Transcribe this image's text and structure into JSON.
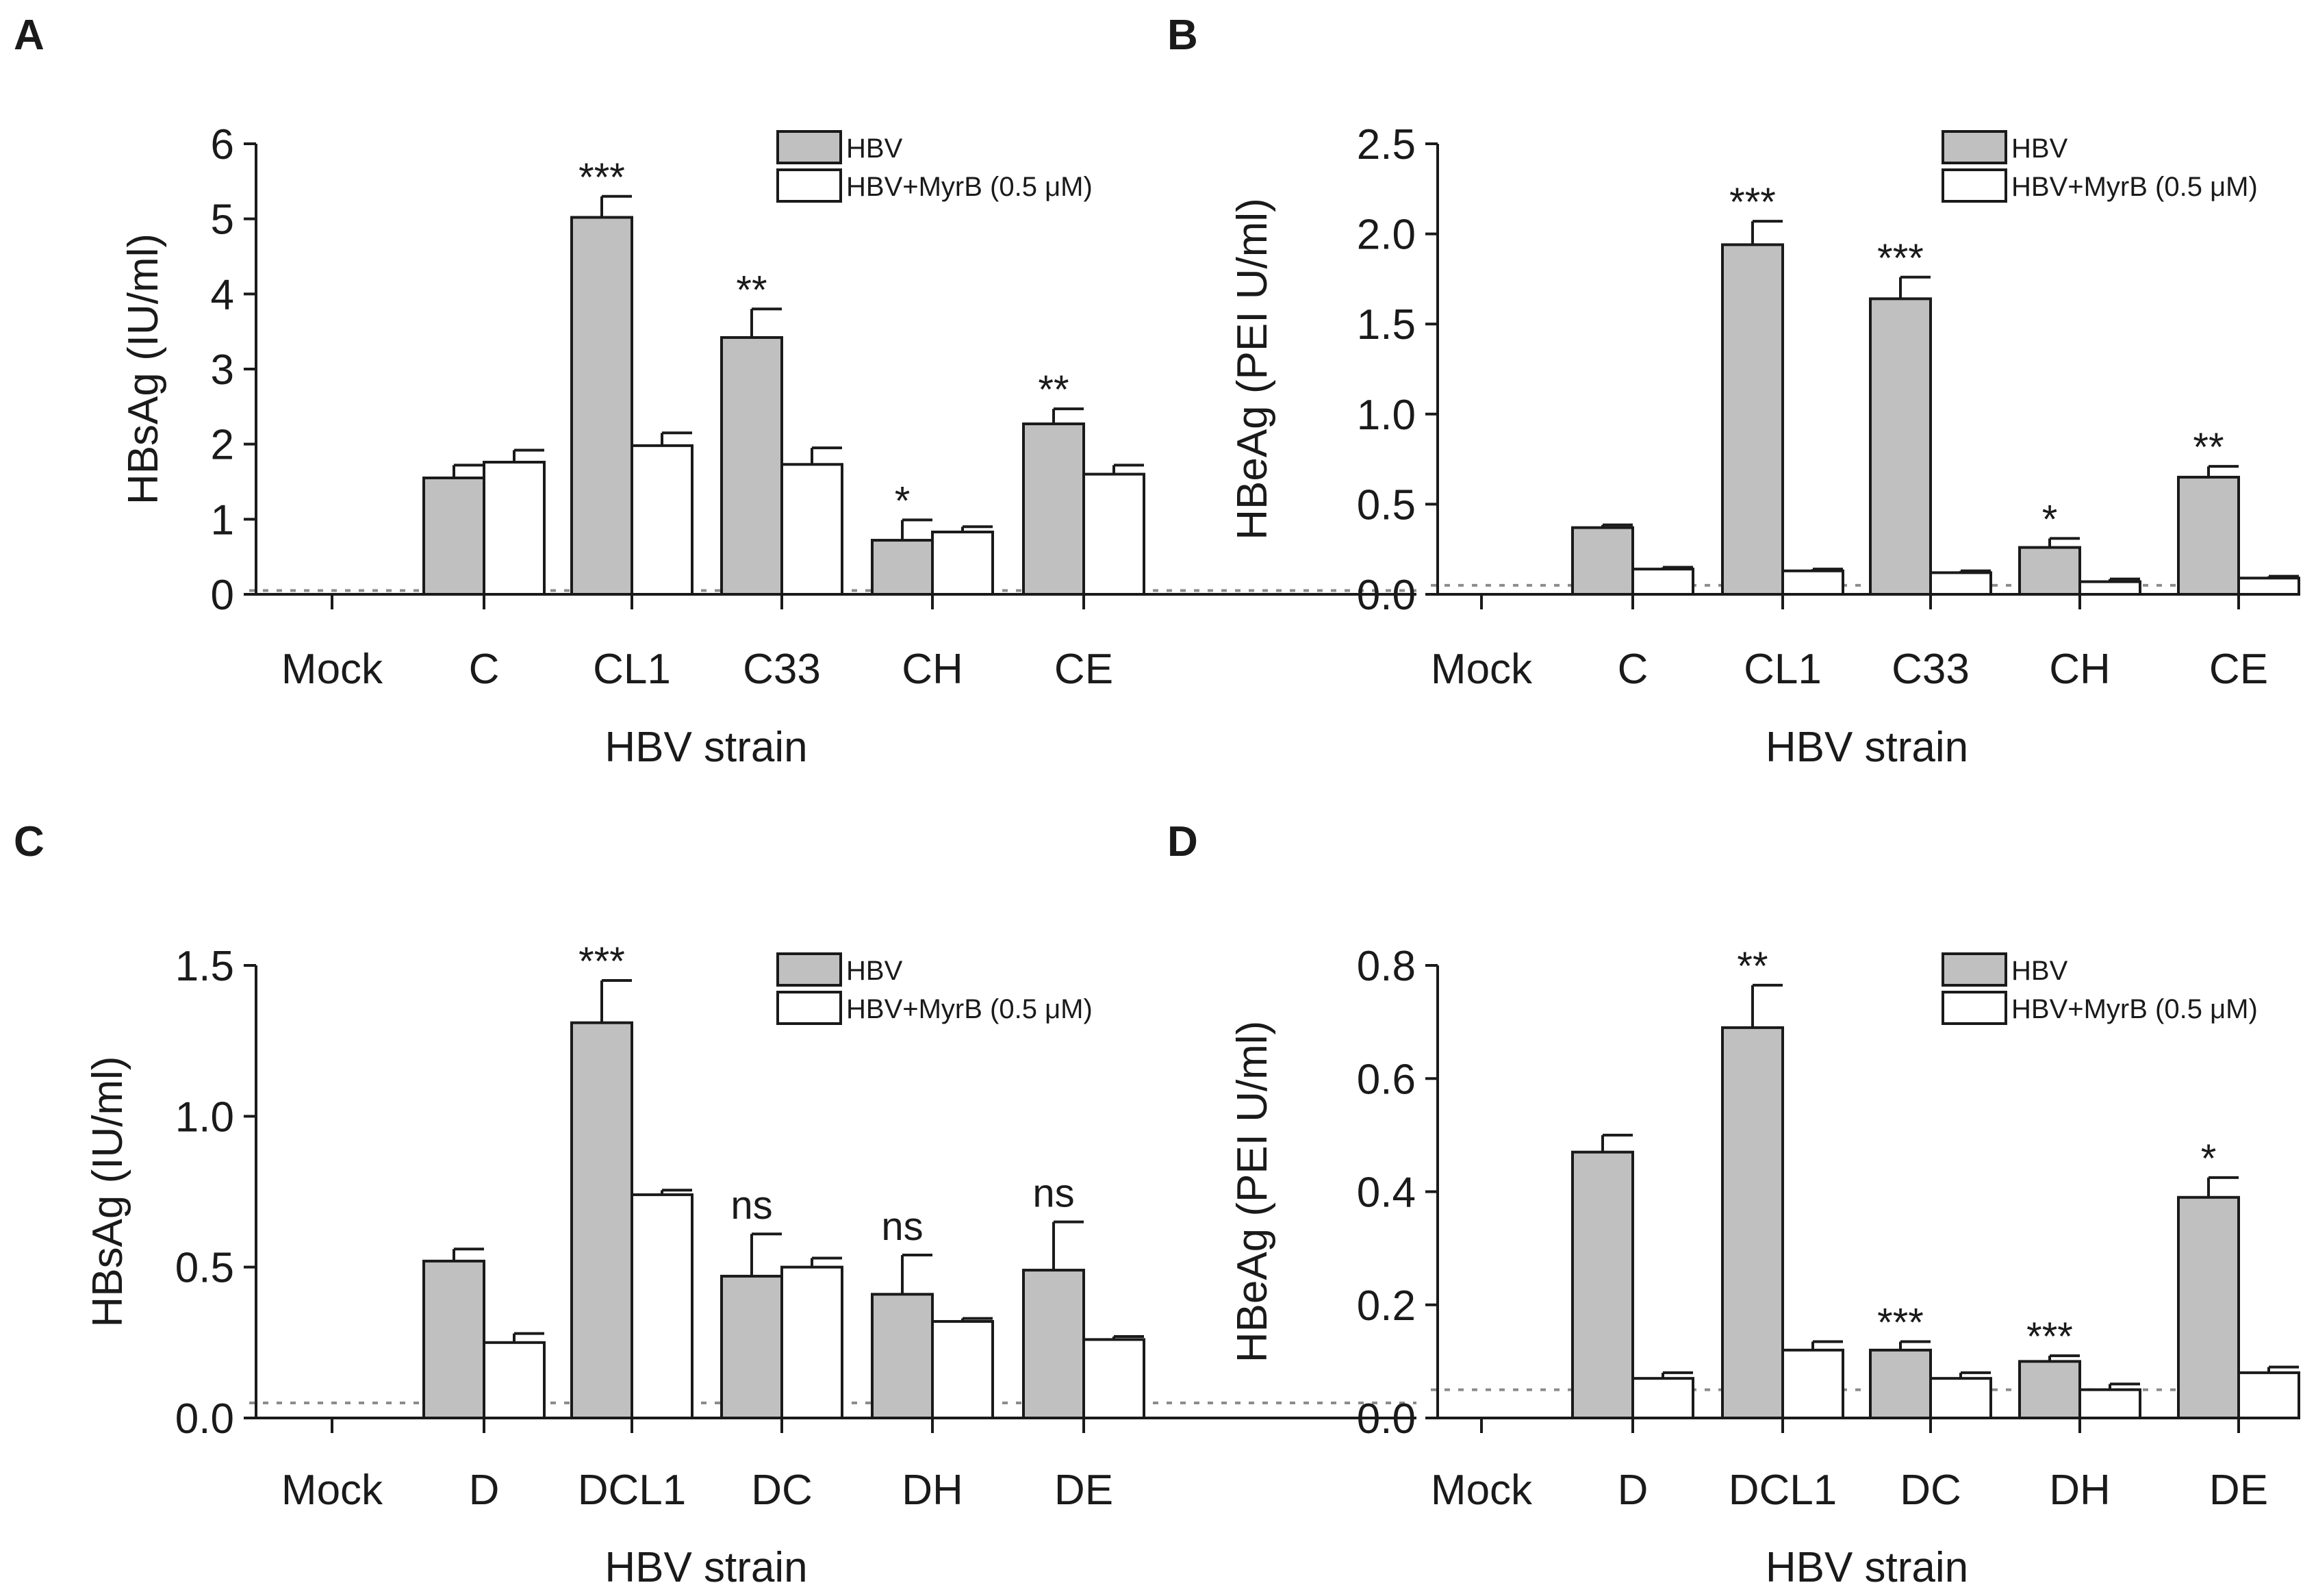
{
  "figure": {
    "legend": {
      "series_a": "HBV",
      "series_b": "HBV+MyrB (0.5 μM)"
    },
    "colors": {
      "series_a": "#c0c0c0",
      "series_b": "#ffffff",
      "stroke": "#1a1a1a",
      "detection_limit": "#8c8c8c"
    }
  },
  "chart_data": [
    {
      "panel": "A",
      "type": "bar",
      "title": "",
      "xlabel": "HBV strain",
      "ylabel": "HBsAg (IU/ml)",
      "ylim": [
        0,
        6
      ],
      "yticks": [
        "0",
        "1",
        "2",
        "3",
        "4",
        "5",
        "6"
      ],
      "detection_limit": 0.05,
      "categories": [
        "Mock",
        "C",
        "CL1",
        "C33",
        "CH",
        "CE"
      ],
      "series": [
        {
          "name": "HBV",
          "values": [
            0,
            1.55,
            5.02,
            3.42,
            0.72,
            2.27
          ],
          "errors": [
            0,
            0.17,
            0.28,
            0.38,
            0.27,
            0.2
          ]
        },
        {
          "name": "HBV+MyrB (0.5 μM)",
          "values": [
            0,
            1.76,
            1.98,
            1.73,
            0.83,
            1.6
          ],
          "errors": [
            0,
            0.16,
            0.17,
            0.22,
            0.07,
            0.12
          ]
        }
      ],
      "annotations": [
        "",
        "",
        "***",
        "**",
        "*",
        "**"
      ]
    },
    {
      "panel": "B",
      "type": "bar",
      "title": "",
      "xlabel": "HBV strain",
      "ylabel": "HBeAg (PEI U/ml)",
      "ylim": [
        0,
        2.5
      ],
      "yticks": [
        "0.0",
        "0.5",
        "1.0",
        "1.5",
        "2.0",
        "2.5"
      ],
      "detection_limit": 0.05,
      "categories": [
        "Mock",
        "C",
        "CL1",
        "C33",
        "CH",
        "CE"
      ],
      "series": [
        {
          "name": "HBV",
          "values": [
            0,
            0.37,
            1.94,
            1.64,
            0.26,
            0.65
          ],
          "errors": [
            0,
            0.015,
            0.13,
            0.12,
            0.05,
            0.06
          ]
        },
        {
          "name": "HBV+MyrB (0.5 μM)",
          "values": [
            0,
            0.14,
            0.13,
            0.12,
            0.07,
            0.09
          ],
          "errors": [
            0,
            0.01,
            0.01,
            0.01,
            0.015,
            0.01
          ]
        }
      ],
      "annotations": [
        "",
        "",
        "***",
        "***",
        "*",
        "**"
      ]
    },
    {
      "panel": "C",
      "type": "bar",
      "title": "",
      "xlabel": "HBV strain",
      "ylabel": "HBsAg (IU/ml)",
      "ylim": [
        0,
        1.5
      ],
      "yticks": [
        "0.0",
        "0.5",
        "1.0",
        "1.5"
      ],
      "detection_limit": 0.05,
      "categories": [
        "Mock",
        "D",
        "DCL1",
        "DC",
        "DH",
        "DE"
      ],
      "series": [
        {
          "name": "HBV",
          "values": [
            0,
            0.52,
            1.31,
            0.47,
            0.41,
            0.49
          ],
          "errors": [
            0,
            0.04,
            0.14,
            0.14,
            0.13,
            0.16
          ]
        },
        {
          "name": "HBV+MyrB (0.5 μM)",
          "values": [
            0,
            0.25,
            0.74,
            0.5,
            0.32,
            0.26
          ],
          "errors": [
            0,
            0.03,
            0.015,
            0.03,
            0.01,
            0.01
          ]
        }
      ],
      "annotations": [
        "",
        "",
        "***",
        "ns",
        "ns",
        "ns"
      ]
    },
    {
      "panel": "D",
      "type": "bar",
      "title": "",
      "xlabel": "HBV strain",
      "ylabel": "HBeAg (PEI U/ml)",
      "ylim": [
        0,
        0.8
      ],
      "yticks": [
        "0.0",
        "0.2",
        "0.4",
        "0.6",
        "0.8"
      ],
      "detection_limit": 0.05,
      "categories": [
        "Mock",
        "D",
        "DCL1",
        "DC",
        "DH",
        "DE"
      ],
      "series": [
        {
          "name": "HBV",
          "values": [
            0,
            0.47,
            0.69,
            0.12,
            0.1,
            0.39
          ],
          "errors": [
            0,
            0.03,
            0.075,
            0.015,
            0.01,
            0.035
          ]
        },
        {
          "name": "HBV+MyrB (0.5 μM)",
          "values": [
            0,
            0.07,
            0.12,
            0.07,
            0.05,
            0.08
          ],
          "errors": [
            0,
            0.01,
            0.015,
            0.01,
            0.01,
            0.01
          ]
        }
      ],
      "annotations": [
        "",
        "",
        "**",
        "***",
        "***",
        "*"
      ]
    }
  ]
}
